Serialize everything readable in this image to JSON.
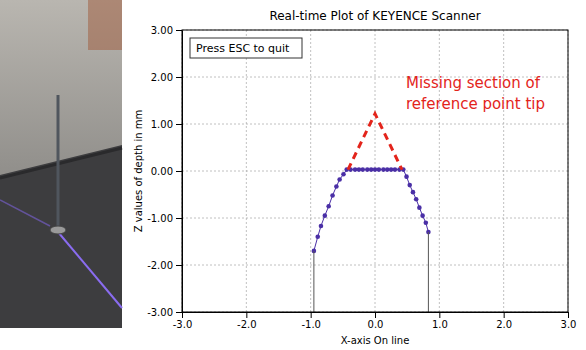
{
  "chart_data": {
    "type": "line",
    "title": "Real-time Plot of KEYENCE Scanner",
    "x_label": "X-axis On line",
    "y_label": "Z values of depth in mm",
    "xlim": [
      -3,
      3
    ],
    "ylim": [
      -3,
      3
    ],
    "xticks": [
      {
        "value": -3,
        "label": "-3.0"
      },
      {
        "value": -2,
        "label": "-2.0"
      },
      {
        "value": -1,
        "label": "-1.0"
      },
      {
        "value": 0,
        "label": "0.0"
      },
      {
        "value": 1,
        "label": "1.0"
      },
      {
        "value": 2,
        "label": "2.0"
      },
      {
        "value": 3,
        "label": "3.0"
      }
    ],
    "yticks": [
      {
        "value": -3,
        "label": "-3.00"
      },
      {
        "value": -2,
        "label": "-2.00"
      },
      {
        "value": -1,
        "label": "-1.00"
      },
      {
        "value": 0,
        "label": "0.00"
      },
      {
        "value": 1,
        "label": "1.00"
      },
      {
        "value": 2,
        "label": "2.00"
      },
      {
        "value": 3,
        "label": "3.00"
      }
    ],
    "grid": true,
    "annotations": [
      {
        "text": [
          "Press ESC to quit"
        ]
      },
      {
        "text": [
          "Missing section of",
          "reference point tip"
        ],
        "color": "#e3241b"
      }
    ],
    "series": [
      {
        "color": "#4a2fa6",
        "marker": "circle",
        "line_style": "solid",
        "x": [
          -0.95,
          -0.89,
          -0.84,
          -0.78,
          -0.72,
          -0.66,
          -0.6,
          -0.55,
          -0.49,
          -0.44,
          -0.38,
          -0.31,
          -0.25,
          -0.19,
          -0.12,
          -0.06,
          0.0,
          0.06,
          0.13,
          0.19,
          0.25,
          0.31,
          0.38,
          0.44,
          0.49,
          0.54,
          0.59,
          0.64,
          0.69,
          0.74,
          0.79,
          0.83
        ],
        "values": [
          -1.7,
          -1.4,
          -1.17,
          -0.95,
          -0.75,
          -0.52,
          -0.33,
          -0.18,
          -0.07,
          0.03,
          0.03,
          0.03,
          0.03,
          0.03,
          0.03,
          0.03,
          0.03,
          0.03,
          0.03,
          0.03,
          0.03,
          0.03,
          0.03,
          0.03,
          -0.12,
          -0.3,
          -0.45,
          -0.6,
          -0.78,
          -0.95,
          -1.1,
          -1.3
        ]
      },
      {
        "color": "#555555",
        "marker": "none",
        "line_style": "solid",
        "x": [
          -0.95,
          -0.95
        ],
        "values": [
          -3,
          -1.7
        ]
      },
      {
        "color": "#555555",
        "marker": "none",
        "line_style": "solid",
        "x": [
          0.83,
          0.83
        ],
        "values": [
          -3,
          -1.3
        ]
      },
      {
        "color": "#e3241b",
        "marker": "none",
        "line_style": "dashed",
        "x": [
          -0.42,
          0.0,
          0.42
        ],
        "values": [
          0.03,
          1.22,
          0.03
        ]
      }
    ]
  }
}
